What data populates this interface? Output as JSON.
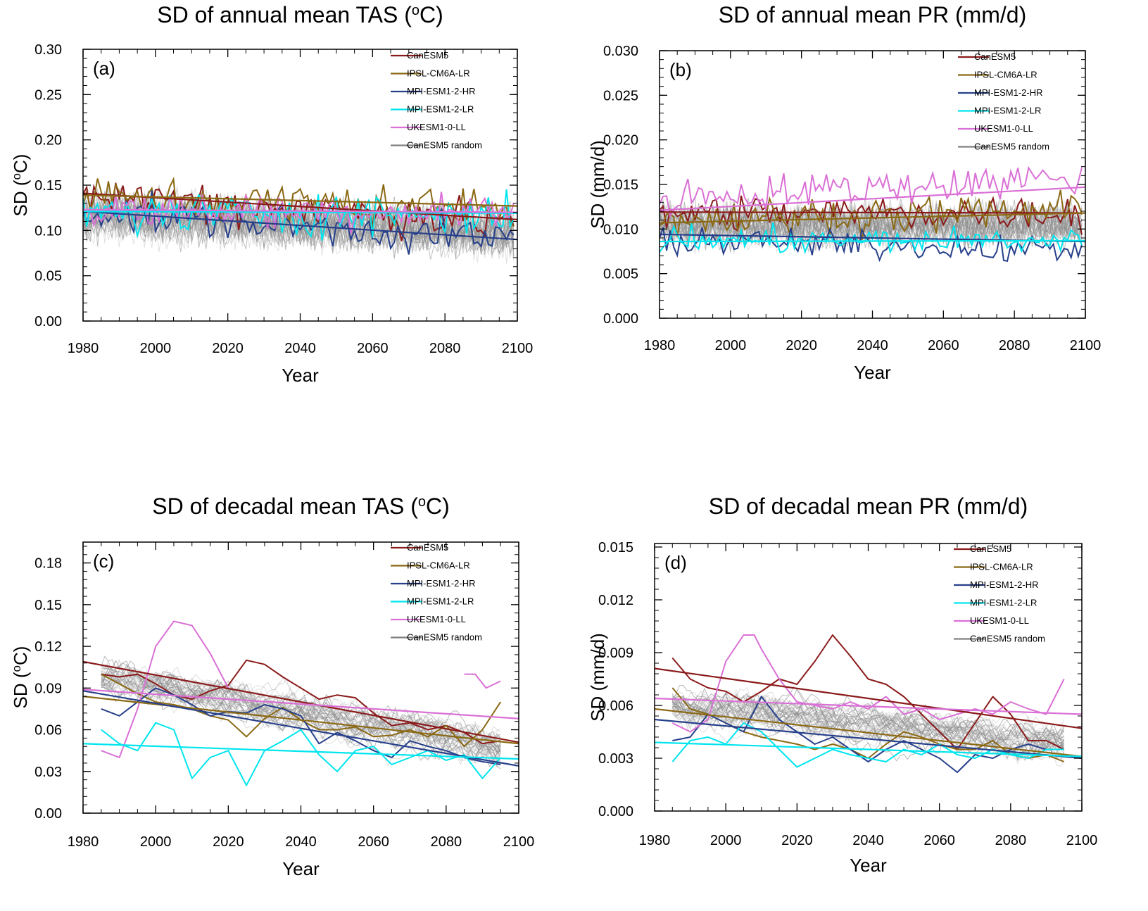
{
  "chart_data": [
    {
      "type": "line",
      "panel": "(a)",
      "title": "SD of annual mean TAS (",
      "title_sup": "o",
      "title_tail": "C)",
      "xlabel": "Year",
      "ylabel": "SD (",
      "ylabel_sup": "o",
      "ylabel_tail": "C)",
      "xlim": [
        1980,
        2100
      ],
      "ylim": [
        0,
        0.3
      ],
      "x_ticks": [
        1980,
        2000,
        2020,
        2040,
        2060,
        2080,
        2100
      ],
      "y_ticks": [
        "0.00",
        "0.05",
        "0.10",
        "0.15",
        "0.20",
        "0.25",
        "0.30"
      ],
      "legend_position": "top-right",
      "timescale": "annual",
      "random_members": 40,
      "random_base": 0.118,
      "random_slope": -0.00018,
      "random_amp": 0.04,
      "series": [
        {
          "name": "CanESM5",
          "color": "#8b1a1a",
          "base": 0.14,
          "slope": -0.00025,
          "amp": 0.035,
          "trend": [
            0.141,
            0.112
          ]
        },
        {
          "name": "IPSL-CM6A-LR",
          "color": "#8b6914",
          "base": 0.136,
          "slope": -0.0001,
          "amp": 0.035,
          "trend": [
            0.139,
            0.127
          ]
        },
        {
          "name": "MPI-ESM1-2-HR",
          "color": "#27408b",
          "base": 0.12,
          "slope": -0.00025,
          "amp": 0.03,
          "trend": [
            0.121,
            0.09
          ]
        },
        {
          "name": "MPI-ESM1-2-LR",
          "color": "#00e5ee",
          "base": 0.12,
          "slope": -2e-05,
          "amp": 0.035,
          "trend": [
            0.121,
            0.119
          ]
        },
        {
          "name": "UKESM1-0-LL",
          "color": "#da70d6",
          "base": 0.122,
          "slope": 0.0,
          "amp": 0.03,
          "trend": [
            0.123,
            0.12
          ]
        },
        {
          "name": "CanESM5 random",
          "color": "#808080",
          "trend": null
        }
      ]
    },
    {
      "type": "line",
      "panel": "(b)",
      "title": "SD of annual mean PR (mm/d)",
      "xlabel": "Year",
      "ylabel": "SD (mm/d)",
      "xlim": [
        1980,
        2100
      ],
      "ylim": [
        0,
        0.03
      ],
      "x_ticks": [
        1980,
        2000,
        2020,
        2040,
        2060,
        2080,
        2100
      ],
      "y_ticks": [
        "0.000",
        "0.005",
        "0.010",
        "0.015",
        "0.020",
        "0.025",
        "0.030"
      ],
      "legend_position": "top-right",
      "timescale": "annual",
      "random_members": 40,
      "random_base": 0.0105,
      "random_slope": 0.0,
      "random_amp": 0.0035,
      "series": [
        {
          "name": "CanESM5",
          "color": "#8b1a1a",
          "base": 0.0118,
          "slope": 0.0,
          "amp": 0.003,
          "trend": [
            0.0119,
            0.0118
          ]
        },
        {
          "name": "IPSL-CM6A-LR",
          "color": "#8b6914",
          "base": 0.011,
          "slope": 1e-05,
          "amp": 0.003,
          "trend": [
            0.0107,
            0.0118
          ]
        },
        {
          "name": "MPI-ESM1-2-HR",
          "color": "#27408b",
          "base": 0.0088,
          "slope": -1e-05,
          "amp": 0.0022,
          "trend": [
            0.0094,
            0.0086
          ]
        },
        {
          "name": "MPI-ESM1-2-LR",
          "color": "#00e5ee",
          "base": 0.0087,
          "slope": 0.0,
          "amp": 0.0022,
          "trend": [
            0.0086,
            0.0087
          ]
        },
        {
          "name": "UKESM1-0-LL",
          "color": "#da70d6",
          "base": 0.0135,
          "slope": 2e-05,
          "amp": 0.003,
          "trend": [
            0.0121,
            0.0147
          ]
        },
        {
          "name": "CanESM5 random",
          "color": "#808080",
          "trend": null
        }
      ]
    },
    {
      "type": "line",
      "panel": "(c)",
      "title": "SD of decadal mean TAS (",
      "title_sup": "o",
      "title_tail": "C)",
      "xlabel": "Year",
      "ylabel": "SD (",
      "ylabel_sup": "o",
      "ylabel_tail": "C)",
      "xlim": [
        1980,
        2100
      ],
      "ylim": [
        0,
        0.195
      ],
      "x_ticks": [
        1980,
        2000,
        2020,
        2040,
        2060,
        2080,
        2100
      ],
      "y_ticks": [
        "0.00",
        "0.03",
        "0.06",
        "0.09",
        "0.12",
        "0.15",
        "0.18"
      ],
      "legend_position": "top-right",
      "timescale": "decadal",
      "random_members": 40,
      "random_base": 0.1,
      "random_slope": -0.00045,
      "random_amp": 0.022,
      "series": [
        {
          "name": "CanESM5",
          "color": "#8b1a1a",
          "x": [
            1985,
            1990,
            1995,
            2000,
            2005,
            2010,
            2015,
            2020,
            2025,
            2030,
            2035,
            2040,
            2045,
            2050,
            2055,
            2060,
            2065,
            2070,
            2075,
            2080,
            2085,
            2090,
            2095
          ],
          "values": [
            0.1,
            0.098,
            0.1,
            0.093,
            0.085,
            0.082,
            0.088,
            0.092,
            0.11,
            0.107,
            0.098,
            0.09,
            0.082,
            0.085,
            0.083,
            0.072,
            0.063,
            0.065,
            0.06,
            0.063,
            0.058,
            0.05,
            0.052
          ],
          "trend": [
            0.109,
            0.051
          ]
        },
        {
          "name": "IPSL-CM6A-LR",
          "color": "#8b6914",
          "x": [
            1985,
            1990,
            1995,
            2000,
            2005,
            2010,
            2015,
            2020,
            2025,
            2030,
            2035,
            2040,
            2045,
            2050,
            2055,
            2060,
            2065,
            2070,
            2075,
            2080,
            2085,
            2090,
            2095
          ],
          "values": [
            0.1,
            0.093,
            0.086,
            0.08,
            0.078,
            0.075,
            0.07,
            0.067,
            0.055,
            0.068,
            0.076,
            0.067,
            0.06,
            0.06,
            0.062,
            0.055,
            0.056,
            0.06,
            0.055,
            0.063,
            0.048,
            0.06,
            0.08
          ],
          "trend": [
            0.084,
            0.05
          ]
        },
        {
          "name": "MPI-ESM1-2-HR",
          "color": "#27408b",
          "x": [
            1985,
            1990,
            1995,
            2000,
            2005,
            2010,
            2015,
            2020,
            2025,
            2030,
            2035,
            2040,
            2045,
            2050,
            2055,
            2060,
            2065,
            2070,
            2075,
            2080,
            2085,
            2090,
            2095
          ],
          "values": [
            0.075,
            0.07,
            0.08,
            0.09,
            0.085,
            0.078,
            0.07,
            0.073,
            0.072,
            0.078,
            0.075,
            0.07,
            0.05,
            0.058,
            0.052,
            0.045,
            0.04,
            0.052,
            0.048,
            0.045,
            0.04,
            0.037,
            0.035
          ],
          "trend": [
            0.088,
            0.034
          ]
        },
        {
          "name": "MPI-ESM1-2-LR",
          "color": "#00e5ee",
          "x": [
            1985,
            1990,
            1995,
            2000,
            2005,
            2010,
            2015,
            2020,
            2025,
            2030,
            2035,
            2040,
            2045,
            2050,
            2055,
            2060,
            2065,
            2070,
            2075,
            2080,
            2085,
            2090,
            2095
          ],
          "values": [
            0.06,
            0.05,
            0.045,
            0.065,
            0.06,
            0.025,
            0.04,
            0.045,
            0.02,
            0.045,
            0.052,
            0.06,
            0.042,
            0.03,
            0.045,
            0.048,
            0.035,
            0.04,
            0.045,
            0.038,
            0.042,
            0.025,
            0.04
          ],
          "trend": [
            0.05,
            0.039
          ]
        },
        {
          "name": "UKESM1-0-LL",
          "color": "#da70d6",
          "x": [
            1985,
            1990,
            1995,
            2000,
            2005,
            2010,
            2015,
            2020
          ],
          "values": [
            0.045,
            0.04,
            0.075,
            0.12,
            0.138,
            0.135,
            0.115,
            0.09
          ],
          "x2": [
            2085,
            2088,
            2091,
            2095
          ],
          "values2": [
            0.1,
            0.1,
            0.09,
            0.095
          ],
          "trend": [
            0.089,
            0.068
          ]
        },
        {
          "name": "CanESM5 random",
          "color": "#808080",
          "trend": null
        }
      ]
    },
    {
      "type": "line",
      "panel": "(d)",
      "title": "SD of decadal mean PR (mm/d)",
      "xlabel": "Year",
      "ylabel": "SD (mm/d)",
      "xlim": [
        1980,
        2100
      ],
      "ylim": [
        0,
        0.0152
      ],
      "x_ticks": [
        1980,
        2000,
        2020,
        2040,
        2060,
        2080,
        2100
      ],
      "y_ticks": [
        "0.000",
        "0.003",
        "0.006",
        "0.009",
        "0.012",
        "0.015"
      ],
      "legend_position": "top-right",
      "timescale": "decadal",
      "random_members": 40,
      "random_base": 0.0062,
      "random_slope": -2e-05,
      "random_amp": 0.0017,
      "series": [
        {
          "name": "CanESM5",
          "color": "#8b1a1a",
          "x": [
            1985,
            1990,
            1995,
            2000,
            2005,
            2010,
            2015,
            2020,
            2025,
            2030,
            2035,
            2040,
            2045,
            2050,
            2055,
            2060,
            2065,
            2070,
            2075,
            2080,
            2085,
            2090,
            2095
          ],
          "values": [
            0.0087,
            0.0075,
            0.007,
            0.0068,
            0.0062,
            0.0068,
            0.0075,
            0.0072,
            0.0085,
            0.01,
            0.0088,
            0.0075,
            0.0072,
            0.0065,
            0.0055,
            0.0045,
            0.0035,
            0.005,
            0.0065,
            0.0055,
            0.004,
            0.004,
            0.0035
          ],
          "trend": [
            0.0081,
            0.0047
          ]
        },
        {
          "name": "IPSL-CM6A-LR",
          "color": "#8b6914",
          "x": [
            1985,
            1990,
            1995,
            2000,
            2005,
            2010,
            2015,
            2020,
            2025,
            2030,
            2035,
            2040,
            2045,
            2050,
            2055,
            2060,
            2065,
            2070,
            2075,
            2080,
            2085,
            2090,
            2095
          ],
          "values": [
            0.007,
            0.0058,
            0.0055,
            0.005,
            0.0045,
            0.0042,
            0.004,
            0.0038,
            0.0035,
            0.0038,
            0.0035,
            0.003,
            0.0038,
            0.0045,
            0.0042,
            0.0038,
            0.0035,
            0.0035,
            0.004,
            0.0032,
            0.003,
            0.0032,
            0.0028
          ],
          "trend": [
            0.0058,
            0.0031
          ]
        },
        {
          "name": "MPI-ESM1-2-HR",
          "color": "#27408b",
          "x": [
            1985,
            1990,
            1995,
            2000,
            2005,
            2010,
            2015,
            2020,
            2025,
            2030,
            2035,
            2040,
            2045,
            2050,
            2055,
            2060,
            2065,
            2070,
            2075,
            2080,
            2085,
            2090,
            2095
          ],
          "values": [
            0.004,
            0.0042,
            0.0055,
            0.005,
            0.0045,
            0.0065,
            0.0052,
            0.0045,
            0.0038,
            0.0042,
            0.0035,
            0.0028,
            0.0035,
            0.004,
            0.0035,
            0.003,
            0.0022,
            0.0032,
            0.003,
            0.0035,
            0.0038,
            0.0035,
            0.0035
          ],
          "trend": [
            0.0052,
            0.003
          ]
        },
        {
          "name": "MPI-ESM1-2-LR",
          "color": "#00e5ee",
          "x": [
            1985,
            1990,
            1995,
            2000,
            2005,
            2010,
            2015,
            2020,
            2025,
            2030,
            2035,
            2040,
            2045,
            2050,
            2055,
            2060,
            2065,
            2070,
            2075,
            2080,
            2085,
            2090,
            2095
          ],
          "values": [
            0.0028,
            0.004,
            0.0042,
            0.0038,
            0.005,
            0.0045,
            0.0035,
            0.0025,
            0.003,
            0.0035,
            0.0032,
            0.003,
            0.0028,
            0.0035,
            0.0032,
            0.0038,
            0.0032,
            0.003,
            0.0035,
            0.0032,
            0.003,
            0.0035,
            0.0035
          ],
          "trend": [
            0.0039,
            0.0031
          ]
        },
        {
          "name": "UKESM1-0-LL",
          "color": "#da70d6",
          "x": [
            1985,
            1990,
            1995,
            2000,
            2005,
            2008,
            2010,
            2015,
            2020,
            2025,
            2030,
            2035,
            2040,
            2045,
            2050,
            2055,
            2060,
            2065,
            2070,
            2075,
            2080,
            2085,
            2090,
            2095
          ],
          "values": [
            0.005,
            0.0045,
            0.0052,
            0.0085,
            0.01,
            0.01,
            0.0092,
            0.0075,
            0.0062,
            0.006,
            0.0058,
            0.0062,
            0.0058,
            0.0065,
            0.0055,
            0.0058,
            0.0052,
            0.0055,
            0.0058,
            0.0055,
            0.0062,
            0.0058,
            0.0055,
            0.0075
          ],
          "trend": [
            0.0064,
            0.0055
          ]
        },
        {
          "name": "CanESM5 random",
          "color": "#808080",
          "trend": null
        }
      ]
    }
  ]
}
